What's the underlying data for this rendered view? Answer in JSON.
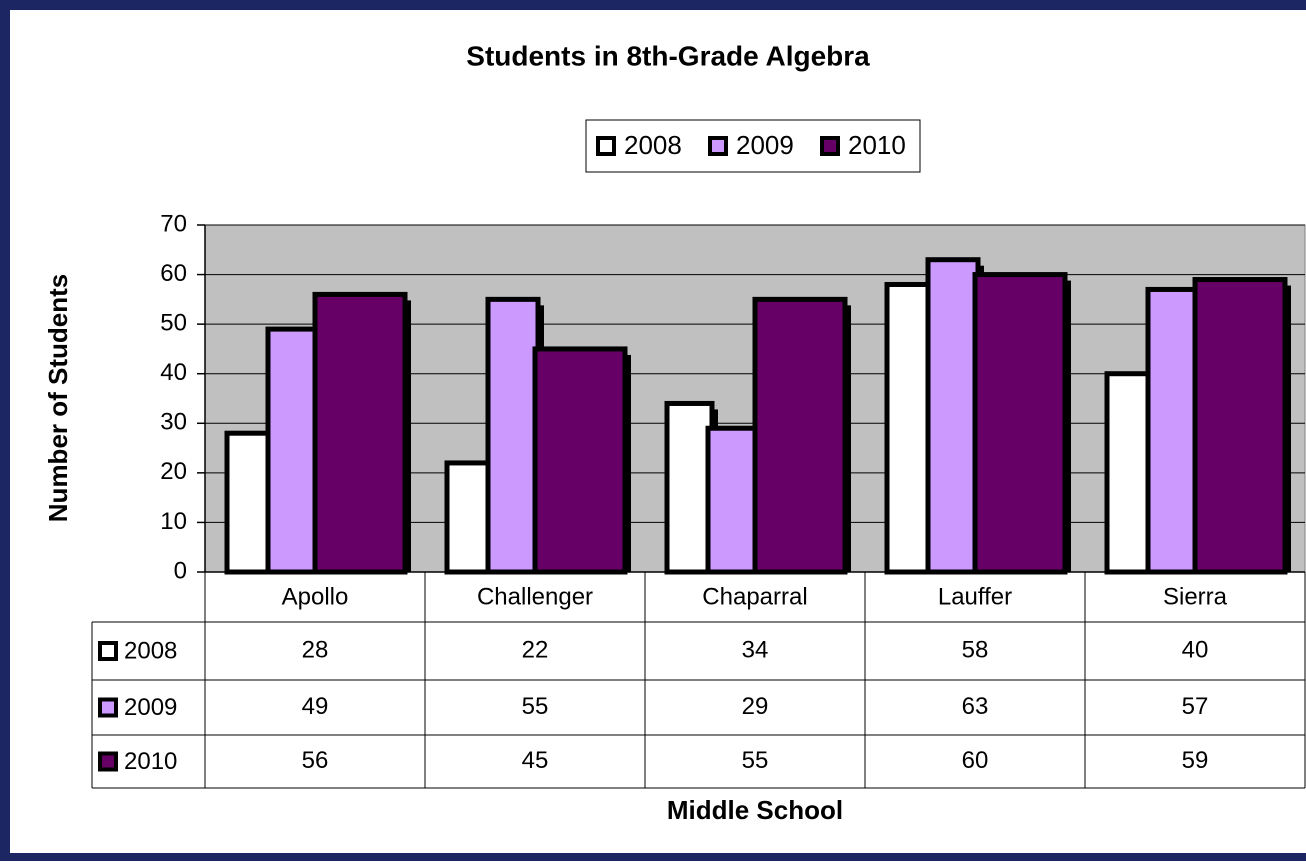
{
  "chart_data": {
    "type": "bar",
    "title": "Students in 8th-Grade Algebra",
    "x_label": "Middle School",
    "y_label": "Number of Students",
    "categories": [
      "Apollo",
      "Challenger",
      "Chaparral",
      "Lauffer",
      "Sierra"
    ],
    "series": [
      {
        "name": "2008",
        "color": "#ffffff",
        "values": [
          28,
          22,
          34,
          58,
          40
        ]
      },
      {
        "name": "2009",
        "color": "#cc99ff",
        "values": [
          49,
          55,
          29,
          63,
          57
        ]
      },
      {
        "name": "2010",
        "color": "#660066",
        "values": [
          56,
          45,
          55,
          60,
          59
        ]
      }
    ],
    "ylim": [
      0,
      70
    ],
    "yticks": [
      0,
      10,
      20,
      30,
      40,
      50,
      60,
      70
    ],
    "grid": true,
    "legend": "top",
    "plot_background": "#c0c0c0"
  }
}
